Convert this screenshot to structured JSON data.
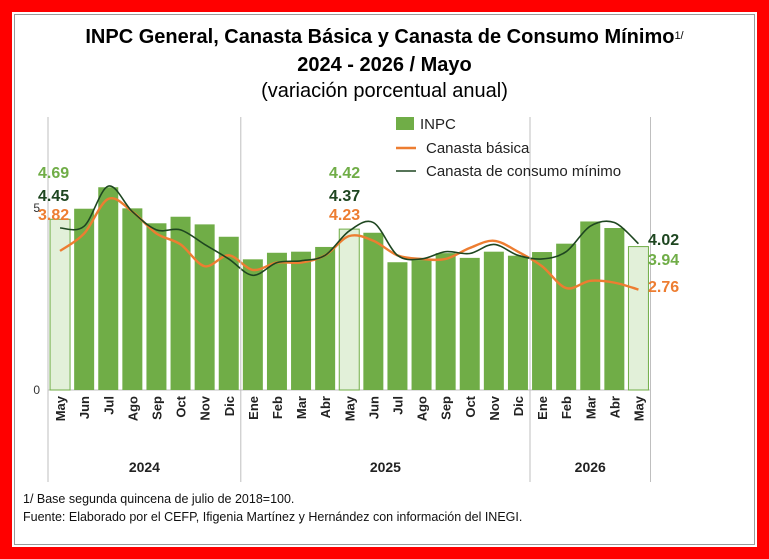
{
  "title": {
    "line1": "INPC General, Canasta Básica  y Canasta de Consumo Mínimo",
    "line1_sup": "1/",
    "line2": "2024 - 2026 / Mayo",
    "line3": "(variación porcentual anual)"
  },
  "footnotes": {
    "base": "1/ Base segunda quincena de julio de 2018=100.",
    "source": "Fuente: Elaborado por el CEFP, Ifigenia Martínez y Hernández con información del INEGI."
  },
  "chart_data": {
    "type": "bar",
    "categories": [
      "May",
      "Jun",
      "Jul",
      "Ago",
      "Sep",
      "Oct",
      "Nov",
      "Dic",
      "Ene",
      "Feb",
      "Mar",
      "Abr",
      "May",
      "Jun",
      "Jul",
      "Ago",
      "Sep",
      "Oct",
      "Nov",
      "Dic",
      "Ene",
      "Feb",
      "Mar",
      "Abr",
      "May"
    ],
    "year_groups": [
      {
        "label": "2024",
        "start": 0,
        "end": 7
      },
      {
        "label": "2025",
        "start": 8,
        "end": 19
      },
      {
        "label": "2026",
        "start": 20,
        "end": 24
      }
    ],
    "highlight_indices": [
      0,
      12,
      24
    ],
    "series": [
      {
        "name": "INPC",
        "type": "bar",
        "color": "#70ad47",
        "values": [
          4.69,
          4.98,
          5.57,
          4.99,
          4.58,
          4.76,
          4.55,
          4.21,
          3.59,
          3.77,
          3.8,
          3.93,
          4.42,
          4.32,
          3.51,
          3.57,
          3.76,
          3.63,
          3.8,
          3.69,
          3.79,
          4.02,
          4.63,
          4.45,
          3.94
        ]
      },
      {
        "name": "Canasta básica",
        "type": "line",
        "color": "#ed7d31",
        "values": [
          3.82,
          4.3,
          5.25,
          4.9,
          4.3,
          4.0,
          3.4,
          3.7,
          3.3,
          3.5,
          3.5,
          3.7,
          4.23,
          4.1,
          3.7,
          3.6,
          3.6,
          3.9,
          4.1,
          3.8,
          3.4,
          2.8,
          3.0,
          2.95,
          2.76
        ]
      },
      {
        "name": "Canasta de consumo mínimo",
        "type": "line",
        "color": "#1e4620",
        "values": [
          4.45,
          4.5,
          5.6,
          4.9,
          4.4,
          4.4,
          4.0,
          3.6,
          3.15,
          3.5,
          3.55,
          3.7,
          4.37,
          4.6,
          3.7,
          3.6,
          3.8,
          3.75,
          4.0,
          3.7,
          3.6,
          3.8,
          4.5,
          4.6,
          4.02
        ]
      }
    ],
    "annotations": [
      {
        "text": "4.69",
        "series": "INPC",
        "index": 0,
        "color": "#70ad47"
      },
      {
        "text": "4.45",
        "series": "Canasta de consumo mínimo",
        "index": 0,
        "color": "#1e4620"
      },
      {
        "text": "3.82",
        "series": "Canasta básica",
        "index": 0,
        "color": "#ed7d31"
      },
      {
        "text": "4.42",
        "series": "INPC",
        "index": 12,
        "color": "#70ad47"
      },
      {
        "text": "4.37",
        "series": "Canasta de consumo mínimo",
        "index": 12,
        "color": "#1e4620"
      },
      {
        "text": "4.23",
        "series": "Canasta básica",
        "index": 12,
        "color": "#ed7d31"
      },
      {
        "text": "4.02",
        "series": "Canasta de consumo mínimo",
        "index": 24,
        "color": "#1e4620"
      },
      {
        "text": "3.94",
        "series": "INPC",
        "index": 24,
        "color": "#70ad47"
      },
      {
        "text": "2.76",
        "series": "Canasta básica",
        "index": 24,
        "color": "#ed7d31"
      }
    ],
    "y_ticks": [
      0,
      5
    ],
    "ylim": [
      0,
      7.5
    ],
    "grid": false,
    "legend_position": "top-right"
  }
}
